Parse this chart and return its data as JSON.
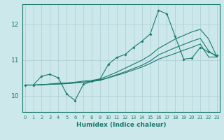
{
  "title": "",
  "xlabel": "Humidex (Indice chaleur)",
  "ylabel": "",
  "bg_color": "#cce8eb",
  "grid_color": "#aacdd4",
  "line_color": "#1a7a6e",
  "x_ticks": [
    0,
    1,
    2,
    3,
    4,
    5,
    6,
    7,
    8,
    9,
    10,
    11,
    12,
    13,
    14,
    15,
    16,
    17,
    18,
    19,
    20,
    21,
    22,
    23
  ],
  "y_ticks": [
    10,
    11,
    12
  ],
  "xlim": [
    -0.3,
    23.3
  ],
  "ylim": [
    9.55,
    12.55
  ],
  "series1": [
    10.3,
    10.3,
    10.55,
    10.6,
    10.5,
    10.05,
    9.87,
    10.32,
    10.4,
    10.47,
    10.88,
    11.07,
    11.15,
    11.35,
    11.52,
    11.72,
    12.38,
    12.28,
    11.65,
    11.02,
    11.05,
    11.35,
    11.22,
    11.12
  ],
  "series2": [
    10.3,
    10.3,
    10.31,
    10.32,
    10.33,
    10.34,
    10.36,
    10.38,
    10.4,
    10.43,
    10.5,
    10.57,
    10.64,
    10.72,
    10.8,
    10.9,
    11.02,
    11.1,
    11.18,
    11.27,
    11.35,
    11.44,
    11.08,
    11.08
  ],
  "series3": [
    10.3,
    10.3,
    10.31,
    10.33,
    10.35,
    10.36,
    10.38,
    10.41,
    10.43,
    10.47,
    10.56,
    10.66,
    10.77,
    10.88,
    10.99,
    11.13,
    11.32,
    11.45,
    11.58,
    11.68,
    11.78,
    11.85,
    11.58,
    11.08
  ],
  "series4": [
    10.3,
    10.3,
    10.31,
    10.32,
    10.33,
    10.34,
    10.36,
    10.38,
    10.4,
    10.44,
    10.51,
    10.59,
    10.67,
    10.76,
    10.85,
    10.97,
    11.14,
    11.24,
    11.34,
    11.43,
    11.52,
    11.6,
    11.25,
    11.08
  ]
}
